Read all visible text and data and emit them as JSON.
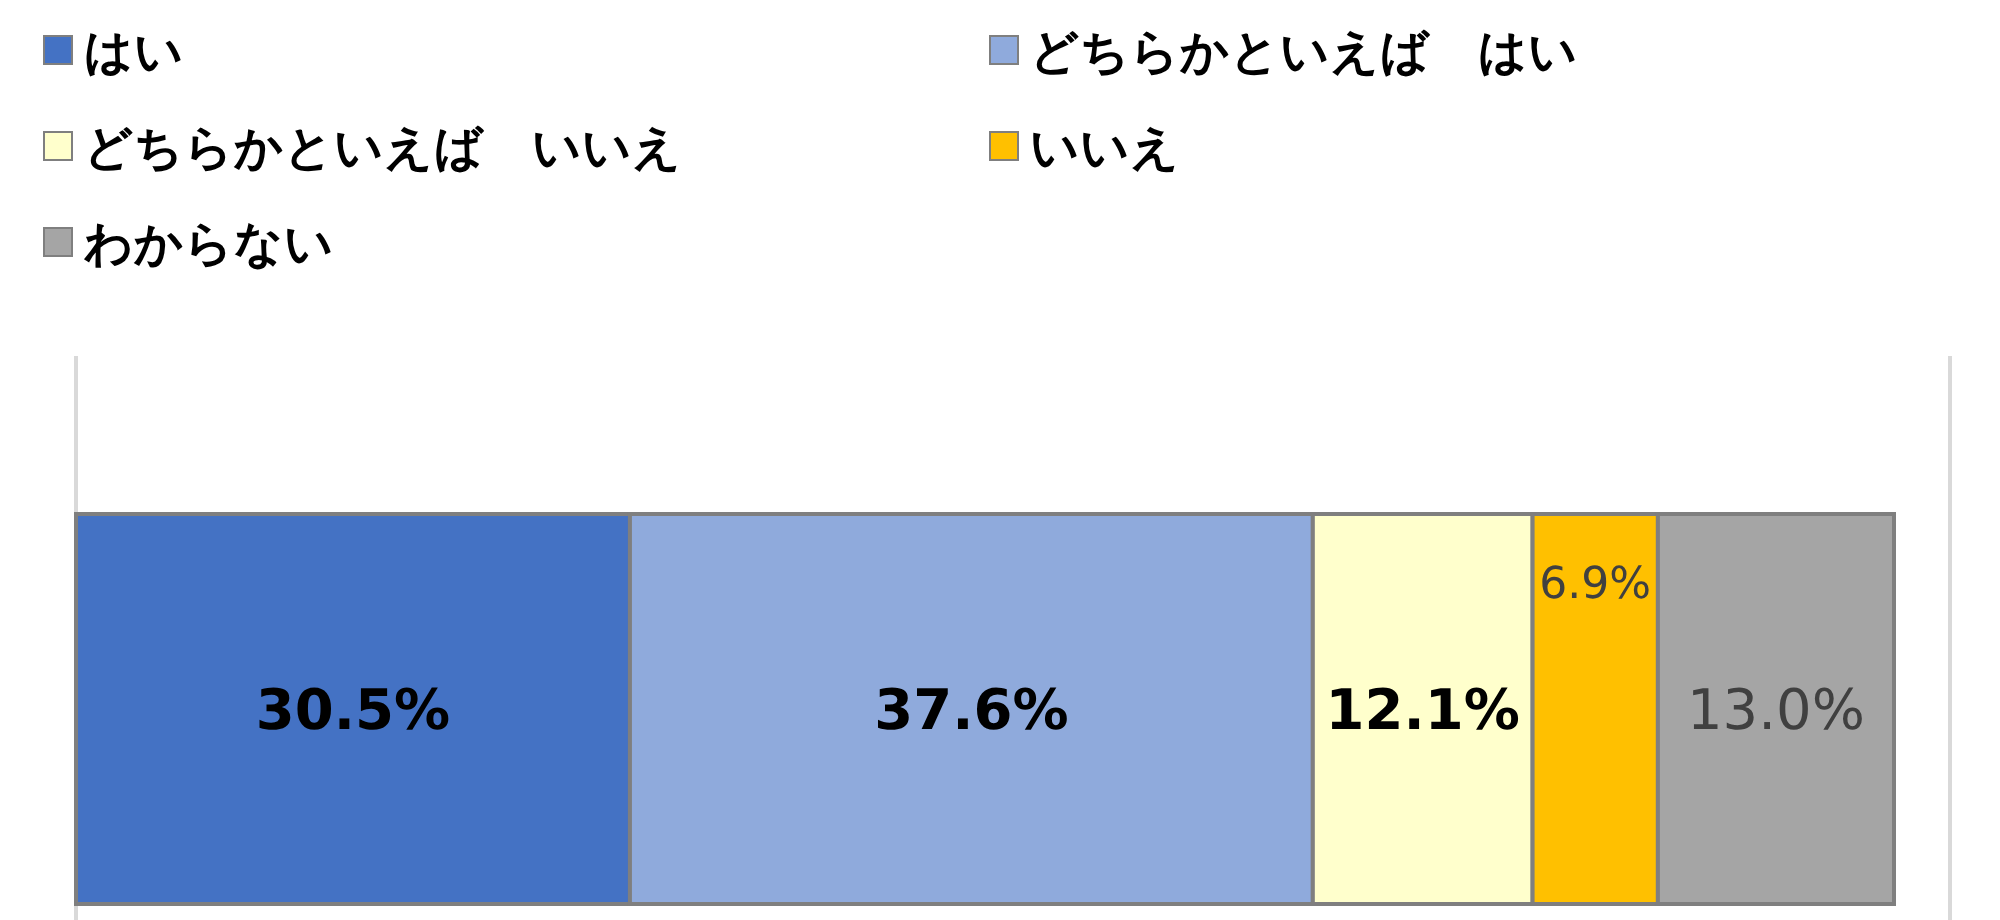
{
  "chart_data": {
    "type": "bar",
    "orientation": "horizontal",
    "stacked": true,
    "categories": [
      null
    ],
    "legend": "top",
    "series": [
      {
        "name": "はい",
        "color": "#4472c4",
        "values": [
          30.5
        ],
        "value_labels": [
          "30.5%"
        ]
      },
      {
        "name": "どちらかといえば　はい",
        "color": "#8faadc",
        "values": [
          37.6
        ],
        "value_labels": [
          "37.6%"
        ]
      },
      {
        "name": "どちらかといえば　いいえ",
        "color": "#ffffcc",
        "values": [
          12.1
        ],
        "value_labels": [
          "12.1%"
        ]
      },
      {
        "name": "いいえ",
        "color": "#ffc000",
        "values": [
          6.9
        ],
        "value_labels": [
          "6.9%"
        ]
      },
      {
        "name": "わからない",
        "color": "#a5a5a5",
        "values": [
          13.0
        ],
        "value_labels": [
          "13.0%"
        ]
      }
    ]
  }
}
